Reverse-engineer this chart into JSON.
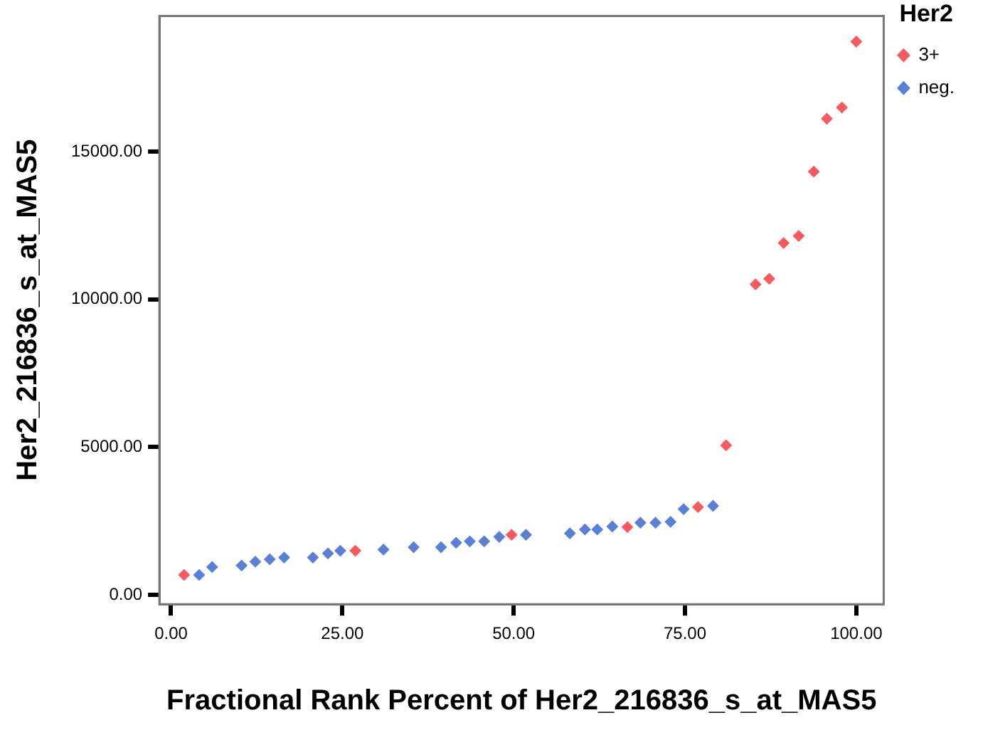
{
  "chart_data": {
    "type": "scatter",
    "xlabel": "Fractional Rank Percent of Her2_216836_s_at_MAS5",
    "ylabel": "Her2_216836_s_at_MAS5",
    "legend_title": "Her2",
    "legend": "top right",
    "marker": "diamond",
    "grid": false,
    "xlim": [
      -1.7,
      104
    ],
    "ylim": [
      -320,
      19600
    ],
    "xticks": [
      {
        "value": 0,
        "label": "0.00"
      },
      {
        "value": 25,
        "label": "25.00"
      },
      {
        "value": 50,
        "label": "50.00"
      },
      {
        "value": 75,
        "label": "75.00"
      },
      {
        "value": 100,
        "label": "100.00"
      }
    ],
    "yticks": [
      {
        "value": 0,
        "label": "0.00"
      },
      {
        "value": 5000,
        "label": "5000.00"
      },
      {
        "value": 10000,
        "label": "10000.00"
      },
      {
        "value": 15000,
        "label": "15000.00"
      }
    ],
    "series": [
      {
        "name": "3+",
        "color": "#f8595f",
        "x": [
          1.9,
          26.9,
          49.7,
          66.6,
          76.9,
          81.0,
          85.3,
          87.3,
          89.4,
          91.6,
          93.8,
          95.7,
          97.9,
          100
        ],
        "values": [
          670,
          1490,
          2030,
          2290,
          2970,
          5060,
          10510,
          10700,
          11910,
          12150,
          14330,
          16120,
          16500,
          18730
        ]
      },
      {
        "name": "neg.",
        "color": "#5a7fd6",
        "x": [
          4.1,
          6.0,
          10.3,
          12.3,
          14.4,
          16.5,
          20.7,
          22.9,
          24.7,
          31.0,
          35.4,
          39.4,
          41.6,
          43.6,
          45.7,
          47.9,
          51.8,
          58.2,
          60.4,
          62.2,
          64.4,
          68.5,
          70.7,
          72.9,
          74.8,
          79.1
        ],
        "values": [
          670,
          940,
          990,
          1120,
          1200,
          1260,
          1260,
          1400,
          1490,
          1530,
          1610,
          1610,
          1760,
          1810,
          1810,
          1960,
          2030,
          2080,
          2210,
          2210,
          2310,
          2440,
          2440,
          2470,
          2900,
          3010
        ]
      }
    ]
  }
}
